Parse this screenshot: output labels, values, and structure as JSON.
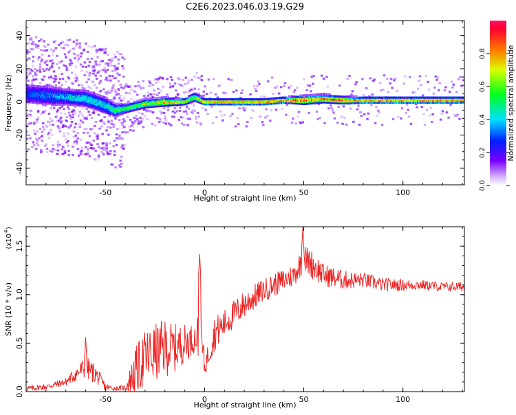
{
  "chart_data": [
    {
      "type": "heatmap",
      "title": "C2E6.2023.046.03.19.G29",
      "xlabel": "Height of straight line (km)",
      "ylabel": "Frequency (Hz)",
      "xlim": [
        -90,
        131
      ],
      "ylim": [
        -50,
        49
      ],
      "xticks": [
        -50,
        0,
        50,
        100
      ],
      "xtick_labels": [
        "-50",
        "0",
        "50",
        "100"
      ],
      "yticks": [
        -40,
        -20,
        0,
        20,
        40
      ],
      "ytick_labels": [
        "-40",
        "-20",
        "0",
        "20",
        "40"
      ],
      "colorbar": {
        "label": "Normalized spectral amplitude",
        "range": [
          0,
          1
        ],
        "ticks": [
          0.0,
          0.2,
          0.4,
          0.6,
          0.8
        ],
        "tick_labels": [
          "0.0",
          "0.2",
          "0.4",
          "0.6",
          "0.8"
        ]
      },
      "ridge": {
        "x": [
          -90,
          -80,
          -70,
          -60,
          -50,
          -45,
          -40,
          -30,
          -20,
          -10,
          -5,
          0,
          10,
          20,
          30,
          40,
          50,
          60,
          70,
          80,
          90,
          100,
          110,
          120,
          131
        ],
        "freq": [
          5,
          4,
          3,
          2,
          -2,
          -5,
          -4,
          -1,
          0,
          0,
          3,
          0,
          0,
          0,
          0,
          1,
          1,
          2,
          1,
          1,
          1,
          1,
          1,
          1,
          1
        ],
        "spread": [
          5,
          5,
          4,
          4,
          4,
          3,
          2,
          2,
          2,
          1.5,
          2,
          1.5,
          1.5,
          1.5,
          1.5,
          1.5,
          2,
          2,
          1.8,
          1.5,
          1.5,
          1.5,
          1.5,
          1.5,
          1.5
        ],
        "amplitude": [
          0.3,
          0.35,
          0.4,
          0.45,
          0.45,
          0.55,
          0.6,
          0.7,
          0.8,
          0.8,
          0.6,
          0.85,
          0.85,
          0.85,
          0.85,
          0.9,
          0.9,
          0.9,
          0.9,
          0.9,
          0.9,
          0.9,
          0.9,
          0.9,
          0.9
        ]
      }
    },
    {
      "type": "line",
      "xlabel": "Height of straight line (km)",
      "ylabel": "SNR (10 * v/v)",
      "yscale_label": "(x10",
      "yscale_exponent": "4",
      "xlim": [
        -90,
        131
      ],
      "ylim": [
        0,
        1.7
      ],
      "xticks": [
        -50,
        0,
        50,
        100
      ],
      "xtick_labels": [
        "-50",
        "0",
        "50",
        "100"
      ],
      "yticks": [
        0.0,
        0.5,
        1.0,
        1.5
      ],
      "ytick_labels": [
        "0.0",
        "0.5",
        "1.0",
        "1.5"
      ],
      "color": "#ee2222",
      "envelope": {
        "x": [
          -90,
          -80,
          -70,
          -65,
          -60,
          -55,
          -50,
          -45,
          -40,
          -35,
          -30,
          -25,
          -20,
          -15,
          -10,
          -5,
          -2,
          0,
          5,
          10,
          20,
          30,
          40,
          45,
          50,
          55,
          60,
          70,
          80,
          90,
          100,
          110,
          120,
          131
        ],
        "y": [
          0.03,
          0.05,
          0.1,
          0.18,
          0.25,
          0.18,
          0.05,
          0.03,
          0.04,
          0.2,
          0.35,
          0.4,
          0.45,
          0.45,
          0.5,
          0.55,
          0.6,
          0.25,
          0.6,
          0.7,
          0.9,
          1.05,
          1.15,
          1.2,
          1.38,
          1.3,
          1.2,
          1.15,
          1.15,
          1.1,
          1.1,
          1.1,
          1.08,
          1.08
        ],
        "noise": [
          0.03,
          0.03,
          0.04,
          0.08,
          0.12,
          0.1,
          0.04,
          0.02,
          0.03,
          0.25,
          0.3,
          0.3,
          0.3,
          0.25,
          0.2,
          0.15,
          0.3,
          0.1,
          0.18,
          0.15,
          0.15,
          0.12,
          0.12,
          0.12,
          0.15,
          0.15,
          0.12,
          0.1,
          0.08,
          0.07,
          0.06,
          0.05,
          0.05,
          0.05
        ]
      },
      "peaks": [
        {
          "x": -60,
          "y": 0.56
        },
        {
          "x": -2.5,
          "y": 1.42
        },
        {
          "x": 49.5,
          "y": 1.69
        }
      ]
    }
  ]
}
